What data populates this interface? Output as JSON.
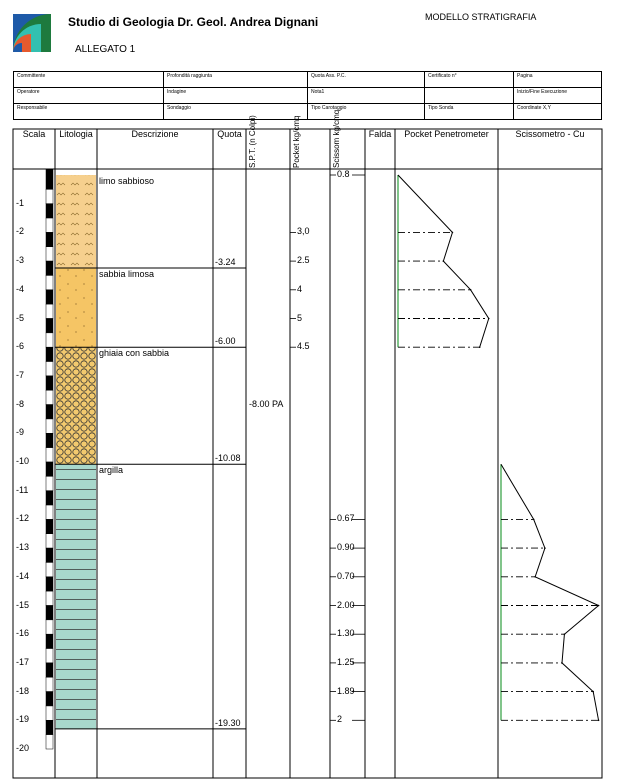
{
  "header": {
    "studio_title": "Studio di Geologia  Dr. Geol. Andrea Dignani",
    "attachment": "ALLEGATO 1",
    "model": "MODELLO STRATIGRAFIA"
  },
  "info_fields": {
    "row1": [
      "Committente",
      "Profondità raggiunta",
      "Quota Ass. P.C.",
      "Certificato n°",
      "Pagina"
    ],
    "row2": [
      "Operatore",
      "Indagine",
      "Nota1",
      "",
      "Inizio/Fine Esecuzione"
    ],
    "row3": [
      "Responsabile",
      "Sondaggio",
      "Tipo Carotaggio",
      "Tipo Sonda",
      "Coordinate X,Y"
    ]
  },
  "columns": {
    "scala": "Scala",
    "litologia": "Litologia",
    "descrizione": "Descrizione",
    "quota": "Quota",
    "spt": "S.P.T. (n Colpi)",
    "pocket": "Pocket kg/cmq",
    "scissom": "Scissom kg/cmq",
    "falda": "Falda",
    "pocket_pen": "Pocket Penetrometer",
    "scissometro": "Scissometro - Cu"
  },
  "scale_labels": [
    "-1",
    "-2",
    "-3",
    "-4",
    "-5",
    "-6",
    "-7",
    "-8",
    "-9",
    "-10",
    "-11",
    "-12",
    "-13",
    "-14",
    "-15",
    "-16",
    "-17",
    "-18",
    "-19",
    "-20"
  ],
  "layers": [
    {
      "description": "limo sabbioso",
      "top": 0,
      "bottom": 3.24,
      "bottom_label": "-3.24",
      "pattern": "silt"
    },
    {
      "description": "sabbia limosa",
      "top": 3.24,
      "bottom": 6.0,
      "bottom_label": "-6.00",
      "pattern": "sand"
    },
    {
      "description": "ghiaia con sabbia",
      "top": 6.0,
      "bottom": 10.08,
      "bottom_label": "-10.08",
      "pattern": "gravel"
    },
    {
      "description": "argilla",
      "top": 10.08,
      "bottom": 19.3,
      "bottom_label": "-19.30",
      "pattern": "clay"
    }
  ],
  "spt": [
    {
      "depth": 8.0,
      "label": "-8.00 PA"
    }
  ],
  "pocket_readings": [
    {
      "depth": 2,
      "label": "3,0"
    },
    {
      "depth": 3,
      "label": "2.5"
    },
    {
      "depth": 4,
      "label": "4"
    },
    {
      "depth": 5,
      "label": "5"
    },
    {
      "depth": 6,
      "label": "4.5"
    }
  ],
  "scissom_readings": [
    {
      "depth": 0,
      "label": "0.8"
    },
    {
      "depth": 12,
      "label": "0.67"
    },
    {
      "depth": 13,
      "label": "0.90"
    },
    {
      "depth": 14,
      "label": "0.70"
    },
    {
      "depth": 15,
      "label": "2.00"
    },
    {
      "depth": 16,
      "label": "1.30"
    },
    {
      "depth": 17,
      "label": "1.25"
    },
    {
      "depth": 18,
      "label": "1.89"
    },
    {
      "depth": 19,
      "label": "2"
    }
  ],
  "pocket_chart": {
    "depths": [
      2,
      3,
      4,
      5,
      6
    ],
    "values": [
      3.0,
      2.5,
      4,
      5,
      4.5
    ],
    "xlim": [
      0,
      5.4
    ]
  },
  "cu_chart": {
    "depths": [
      12,
      13,
      14,
      15,
      16,
      17,
      18,
      19
    ],
    "values": [
      0.67,
      0.9,
      0.7,
      2.0,
      1.3,
      1.25,
      1.89,
      2
    ],
    "xlim": [
      0,
      2.05
    ]
  },
  "colors": {
    "silt_fill": "#f6d08e",
    "sand_fill": "#f5c565",
    "gravel_fill": "#f2c96e",
    "clay_fill": "#a8d8cc",
    "chart_axis_green": "#2e9e3e"
  }
}
